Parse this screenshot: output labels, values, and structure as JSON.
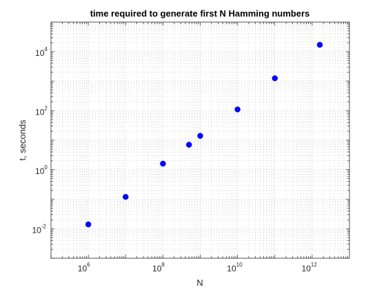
{
  "chart_data": {
    "type": "scatter",
    "title": "time required to generate first N Hamming numbers",
    "xlabel": "N",
    "ylabel": "t, seconds",
    "xscale": "log",
    "yscale": "log",
    "xlim": [
      100000,
      10000000000000
    ],
    "ylim": [
      0.001,
      100000
    ],
    "grid": true,
    "minor_grid": true,
    "marker_color": "#0000ff",
    "x_ticks": [
      {
        "base": "10",
        "exp": "6",
        "value": 1000000
      },
      {
        "base": "10",
        "exp": "8",
        "value": 100000000
      },
      {
        "base": "10",
        "exp": "10",
        "value": 10000000000
      },
      {
        "base": "10",
        "exp": "12",
        "value": 1000000000000
      }
    ],
    "y_ticks": [
      {
        "base": "10",
        "exp": "-2",
        "value": 0.01
      },
      {
        "base": "10",
        "exp": "0",
        "value": 1
      },
      {
        "base": "10",
        "exp": "2",
        "value": 100
      },
      {
        "base": "10",
        "exp": "4",
        "value": 10000
      }
    ],
    "points": [
      {
        "x": 1000000,
        "y": 0.014
      },
      {
        "x": 10000000,
        "y": 0.12
      },
      {
        "x": 100000000,
        "y": 1.6
      },
      {
        "x": 500000000,
        "y": 7
      },
      {
        "x": 1000000000,
        "y": 14
      },
      {
        "x": 10000000000,
        "y": 110
      },
      {
        "x": 100000000000,
        "y": 1250
      },
      {
        "x": 1600000000000,
        "y": 17000
      }
    ]
  }
}
